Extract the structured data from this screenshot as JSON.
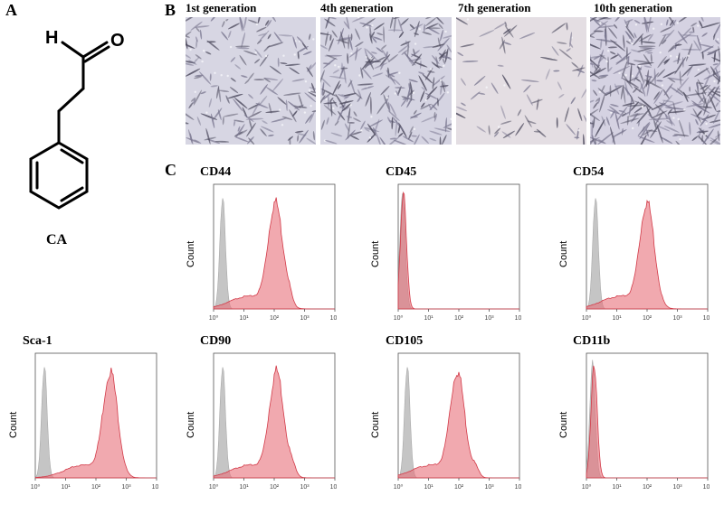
{
  "panels": {
    "a": {
      "letter": "A",
      "compound": "CA",
      "atoms": {
        "h": "H",
        "o": "O"
      }
    },
    "b": {
      "letter": "B",
      "generations": [
        "1st generation",
        "4th generation",
        "7th generation",
        "10th generation"
      ]
    },
    "c": {
      "letter": "C",
      "y_label": "Count",
      "tick_labels": [
        "10⁰",
        "10¹",
        "10²",
        "10³",
        "10⁴"
      ]
    }
  },
  "chart_data": [
    {
      "type": "area",
      "title": "CD44",
      "x_scale": "log",
      "xlim": [
        1,
        10000
      ],
      "series": [
        {
          "color": "#bbbbbb",
          "peak": 2
        },
        {
          "color": "#e8707a",
          "peak": 110,
          "shoulder": 300
        }
      ]
    },
    {
      "type": "area",
      "title": "CD45",
      "x_scale": "log",
      "xlim": [
        1,
        10000
      ],
      "series": [
        {
          "color": "#bbbbbb",
          "peak": 1.4
        },
        {
          "color": "#e8707a",
          "peak": 1.5
        }
      ]
    },
    {
      "type": "area",
      "title": "CD54",
      "x_scale": "log",
      "xlim": [
        1,
        10000
      ],
      "series": [
        {
          "color": "#bbbbbb",
          "peak": 2
        },
        {
          "color": "#e8707a",
          "peak": 100
        }
      ]
    },
    {
      "type": "area",
      "title": "Sca-1",
      "x_scale": "log",
      "xlim": [
        1,
        10000
      ],
      "series": [
        {
          "color": "#bbbbbb",
          "peak": 2
        },
        {
          "color": "#e8707a",
          "peak": 300
        }
      ]
    },
    {
      "type": "area",
      "title": "CD90",
      "x_scale": "log",
      "xlim": [
        1,
        10000
      ],
      "series": [
        {
          "color": "#bbbbbb",
          "peak": 2
        },
        {
          "color": "#e8707a",
          "peak": 120,
          "shoulder": 400
        }
      ]
    },
    {
      "type": "area",
      "title": "CD105",
      "x_scale": "log",
      "xlim": [
        1,
        10000
      ],
      "series": [
        {
          "color": "#bbbbbb",
          "peak": 2
        },
        {
          "color": "#e8707a",
          "peak": 90,
          "shoulder": 350
        }
      ]
    },
    {
      "type": "area",
      "title": "CD11b",
      "x_scale": "log",
      "xlim": [
        1,
        10000
      ],
      "series": [
        {
          "color": "#bbbbbb",
          "peak": 1.6
        },
        {
          "color": "#e8707a",
          "peak": 1.8
        }
      ]
    }
  ],
  "colors": {
    "isotype": "#bbbbbb",
    "marker": "#e8707a",
    "micro_bg": [
      "#d7d6e3",
      "#d5d4e2",
      "#e4dee3",
      "#d5d2e2"
    ]
  }
}
